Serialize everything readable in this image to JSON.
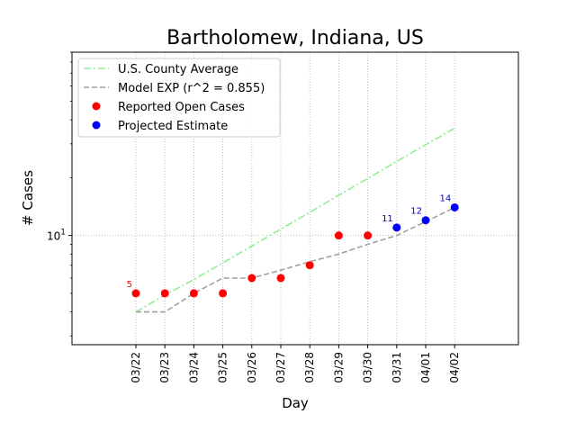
{
  "chart_data": {
    "type": "line",
    "title": "Bartholomew, Indiana, US",
    "xlabel": "Day",
    "ylabel": "# Cases",
    "yscale": "log",
    "ylim": [
      2.7,
      90
    ],
    "grid": true,
    "legend_position": "top-left",
    "categories": [
      "03/22",
      "03/23",
      "03/24",
      "03/25",
      "03/26",
      "03/27",
      "03/28",
      "03/29",
      "03/30",
      "03/31",
      "04/01",
      "04/02"
    ],
    "y_major_tick": {
      "value": 10,
      "label_base": "10",
      "label_exp": "1"
    },
    "series": [
      {
        "name": "U.S. County Average",
        "kind": "line",
        "style": "dash-dot",
        "color": "#90ee90",
        "values": [
          4.0,
          4.9,
          5.9,
          7.2,
          8.8,
          10.8,
          13.2,
          16.2,
          19.8,
          24.3,
          29.7,
          36.2
        ]
      },
      {
        "name": "Model EXP (r^2 = 0.855)",
        "kind": "line",
        "style": "dashed",
        "color": "#a0a0a0",
        "values": [
          4.0,
          4.0,
          5.0,
          6.0,
          6.0,
          6.6,
          7.3,
          8.0,
          9.0,
          10.0,
          11.8,
          14.0
        ]
      },
      {
        "name": "Reported Open Cases",
        "kind": "scatter",
        "color": "#ff0000",
        "x_index": [
          0,
          1,
          2,
          3,
          4,
          5,
          6,
          7,
          8
        ],
        "values": [
          5,
          5,
          5,
          5,
          6,
          6,
          7,
          10,
          10
        ]
      },
      {
        "name": "Projected Estimate",
        "kind": "scatter",
        "color": "#0000ff",
        "x_index": [
          9,
          10,
          11
        ],
        "values": [
          11,
          12,
          14
        ]
      }
    ],
    "annotations": [
      {
        "text": "5",
        "x_index": 0,
        "value": 5,
        "color": "#ff0000"
      },
      {
        "text": "11",
        "x_index": 9,
        "value": 11,
        "color": "#0000cd"
      },
      {
        "text": "12",
        "x_index": 10,
        "value": 12,
        "color": "#0000cd"
      },
      {
        "text": "14",
        "x_index": 11,
        "value": 14,
        "color": "#0000cd"
      }
    ]
  }
}
